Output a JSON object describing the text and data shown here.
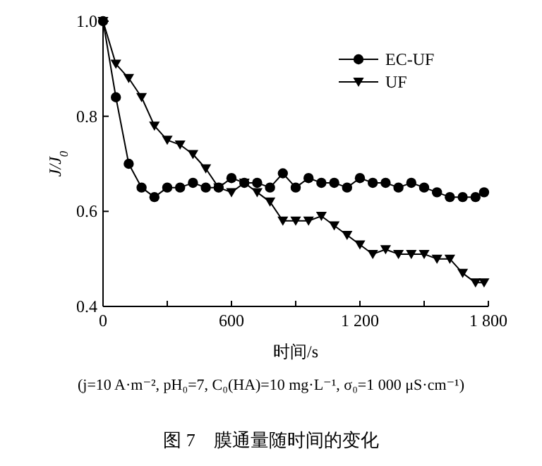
{
  "chart_data": {
    "type": "line",
    "title": "图 7　膜通量随时间的变化",
    "xlabel": "时间/s",
    "ylabel": "J/J$_{0}$",
    "annotations": [
      "(j=10 A·m⁻², pH₀=7, C₀(HA)=10 mg·L⁻¹, σ₀=1 000 μS·cm⁻¹)"
    ],
    "x": [
      0,
      60,
      120,
      180,
      240,
      300,
      360,
      420,
      480,
      540,
      600,
      660,
      720,
      780,
      840,
      900,
      960,
      1020,
      1080,
      1140,
      1200,
      1260,
      1320,
      1380,
      1440,
      1500,
      1560,
      1620,
      1680,
      1740,
      1780
    ],
    "series": [
      {
        "name": "EC-UF",
        "color": "#000000",
        "marker": "circle",
        "values": [
          1.0,
          0.84,
          0.7,
          0.65,
          0.63,
          0.65,
          0.65,
          0.66,
          0.65,
          0.65,
          0.67,
          0.66,
          0.66,
          0.65,
          0.68,
          0.65,
          0.67,
          0.66,
          0.66,
          0.65,
          0.67,
          0.66,
          0.66,
          0.65,
          0.66,
          0.65,
          0.64,
          0.63,
          0.63,
          0.63,
          0.64
        ]
      },
      {
        "name": "UF",
        "color": "#000000",
        "marker": "triangle",
        "values": [
          1.0,
          0.91,
          0.88,
          0.84,
          0.78,
          0.75,
          0.74,
          0.72,
          0.69,
          0.65,
          0.64,
          0.66,
          0.64,
          0.62,
          0.58,
          0.58,
          0.58,
          0.59,
          0.57,
          0.55,
          0.53,
          0.51,
          0.52,
          0.51,
          0.51,
          0.51,
          0.5,
          0.5,
          0.47,
          0.45,
          0.45
        ]
      }
    ],
    "xlim": [
      0,
      1800
    ],
    "xticks": [
      0,
      600,
      {
        "value": 1200,
        "label": "1 200"
      },
      {
        "value": 1800,
        "label": "1 800"
      },
      {
        "value": 300,
        "label": null
      },
      {
        "value": 900,
        "label": null
      },
      {
        "value": 1500,
        "label": null
      }
    ],
    "ylim": [
      0.4,
      1.0
    ],
    "yticks": [
      0.4,
      0.6,
      0.8,
      {
        "value": 1.0,
        "label": "1.0"
      }
    ],
    "legend": "top right",
    "grid": false,
    "line_style": "solid"
  }
}
